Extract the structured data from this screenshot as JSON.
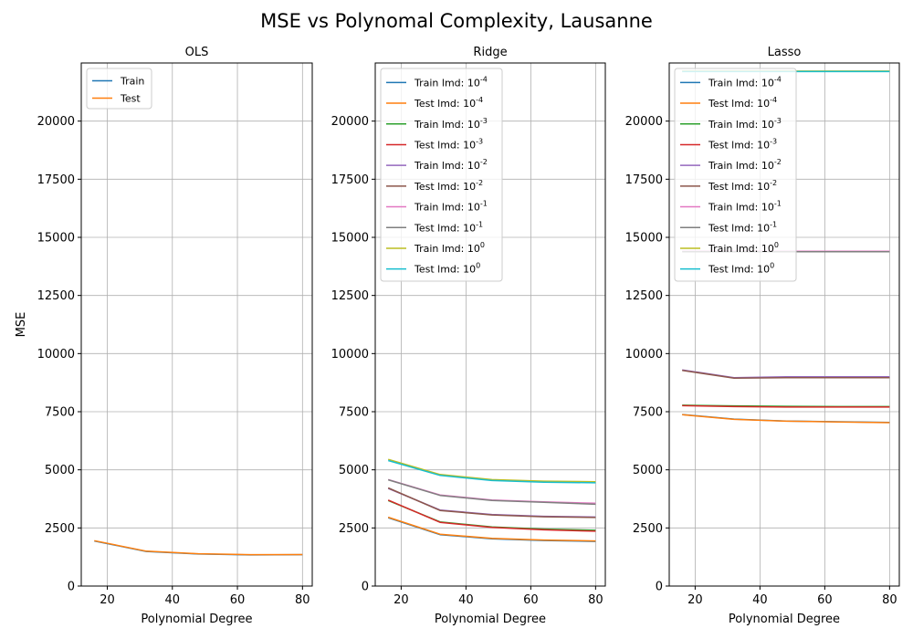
{
  "figure": {
    "suptitle": "MSE vs Polynomal Complexity, Lausanne"
  },
  "chart_data": [
    {
      "type": "line",
      "title": "OLS",
      "xlabel": "Polynomial Degree",
      "ylabel": "MSE",
      "xlim": [
        12,
        83
      ],
      "ylim": [
        0,
        22500
      ],
      "xticks": [
        20,
        40,
        60,
        80
      ],
      "yticks": [
        0,
        2500,
        5000,
        7500,
        10000,
        12500,
        15000,
        17500,
        20000
      ],
      "grid": true,
      "legend_position": "upper-left",
      "x": [
        16,
        32,
        48,
        64,
        80
      ],
      "series": [
        {
          "name": "Train",
          "color": "#1f77b4",
          "values": [
            1940,
            1490,
            1380,
            1340,
            1350
          ]
        },
        {
          "name": "Test",
          "color": "#ff7f0e",
          "values": [
            1950,
            1500,
            1390,
            1350,
            1355
          ]
        }
      ]
    },
    {
      "type": "line",
      "title": "Ridge",
      "xlabel": "Polynomial Degree",
      "ylabel": "",
      "xlim": [
        12,
        83
      ],
      "ylim": [
        0,
        22500
      ],
      "xticks": [
        20,
        40,
        60,
        80
      ],
      "yticks": [
        0,
        2500,
        5000,
        7500,
        10000,
        12500,
        15000,
        17500,
        20000
      ],
      "grid": true,
      "legend_position": "upper-left",
      "x": [
        16,
        32,
        48,
        64,
        80
      ],
      "series": [
        {
          "name": "Train lmd: 10",
          "exp": "-4",
          "color": "#1f77b4",
          "values": [
            2940,
            2210,
            2030,
            1960,
            1920
          ]
        },
        {
          "name": "Test lmd: 10",
          "exp": "-4",
          "color": "#ff7f0e",
          "values": [
            2960,
            2230,
            2050,
            1980,
            1940
          ]
        },
        {
          "name": "Train lmd: 10",
          "exp": "-3",
          "color": "#2ca02c",
          "values": [
            3680,
            2760,
            2540,
            2450,
            2400
          ]
        },
        {
          "name": "Test lmd: 10",
          "exp": "-3",
          "color": "#d62728",
          "values": [
            3700,
            2740,
            2520,
            2420,
            2360
          ]
        },
        {
          "name": "Train lmd: 10",
          "exp": "-2",
          "color": "#9467bd",
          "values": [
            4200,
            3270,
            3080,
            3000,
            2970
          ]
        },
        {
          "name": "Test lmd: 10",
          "exp": "-2",
          "color": "#8c564b",
          "values": [
            4220,
            3250,
            3060,
            2980,
            2950
          ]
        },
        {
          "name": "Train lmd: 10",
          "exp": "-1",
          "color": "#e377c2",
          "values": [
            4580,
            3920,
            3700,
            3620,
            3560
          ]
        },
        {
          "name": "Test lmd: 10",
          "exp": "-1",
          "color": "#7f7f7f",
          "values": [
            4570,
            3900,
            3680,
            3600,
            3520
          ]
        },
        {
          "name": "Train lmd: 10",
          "exp": "0",
          "color": "#bcbd22",
          "values": [
            5450,
            4800,
            4580,
            4510,
            4490
          ]
        },
        {
          "name": "Test lmd: 10",
          "exp": "0",
          "color": "#17becf",
          "values": [
            5400,
            4760,
            4540,
            4470,
            4440
          ]
        }
      ]
    },
    {
      "type": "line",
      "title": "Lasso",
      "xlabel": "Polynomial Degree",
      "ylabel": "",
      "xlim": [
        12,
        83
      ],
      "ylim": [
        0,
        22500
      ],
      "xticks": [
        20,
        40,
        60,
        80
      ],
      "yticks": [
        0,
        2500,
        5000,
        7500,
        10000,
        12500,
        15000,
        17500,
        20000
      ],
      "grid": true,
      "legend_position": "upper-left",
      "x": [
        16,
        32,
        48,
        64,
        80
      ],
      "series": [
        {
          "name": "Train lmd: 10",
          "exp": "-4",
          "color": "#1f77b4",
          "values": [
            7380,
            7180,
            7100,
            7070,
            7040
          ]
        },
        {
          "name": "Test lmd: 10",
          "exp": "-4",
          "color": "#ff7f0e",
          "values": [
            7370,
            7170,
            7090,
            7060,
            7030
          ]
        },
        {
          "name": "Train lmd: 10",
          "exp": "-3",
          "color": "#2ca02c",
          "values": [
            7780,
            7750,
            7730,
            7720,
            7720
          ]
        },
        {
          "name": "Test lmd: 10",
          "exp": "-3",
          "color": "#d62728",
          "values": [
            7760,
            7720,
            7700,
            7700,
            7700
          ]
        },
        {
          "name": "Train lmd: 10",
          "exp": "-2",
          "color": "#9467bd",
          "values": [
            9300,
            8960,
            9000,
            9000,
            9000
          ]
        },
        {
          "name": "Test lmd: 10",
          "exp": "-2",
          "color": "#8c564b",
          "values": [
            9280,
            8940,
            8960,
            8960,
            8960
          ]
        },
        {
          "name": "Train lmd: 10",
          "exp": "-1",
          "color": "#e377c2",
          "values": [
            14400,
            14400,
            14400,
            14400,
            14400
          ]
        },
        {
          "name": "Test lmd: 10",
          "exp": "-1",
          "color": "#7f7f7f",
          "values": [
            14380,
            14380,
            14380,
            14380,
            14380
          ]
        },
        {
          "name": "Train lmd: 10",
          "exp": "0",
          "color": "#bcbd22",
          "values": [
            22150,
            22150,
            22150,
            22150,
            22150
          ]
        },
        {
          "name": "Test lmd: 10",
          "exp": "0",
          "color": "#17becf",
          "values": [
            22130,
            22130,
            22130,
            22130,
            22130
          ]
        }
      ]
    }
  ]
}
